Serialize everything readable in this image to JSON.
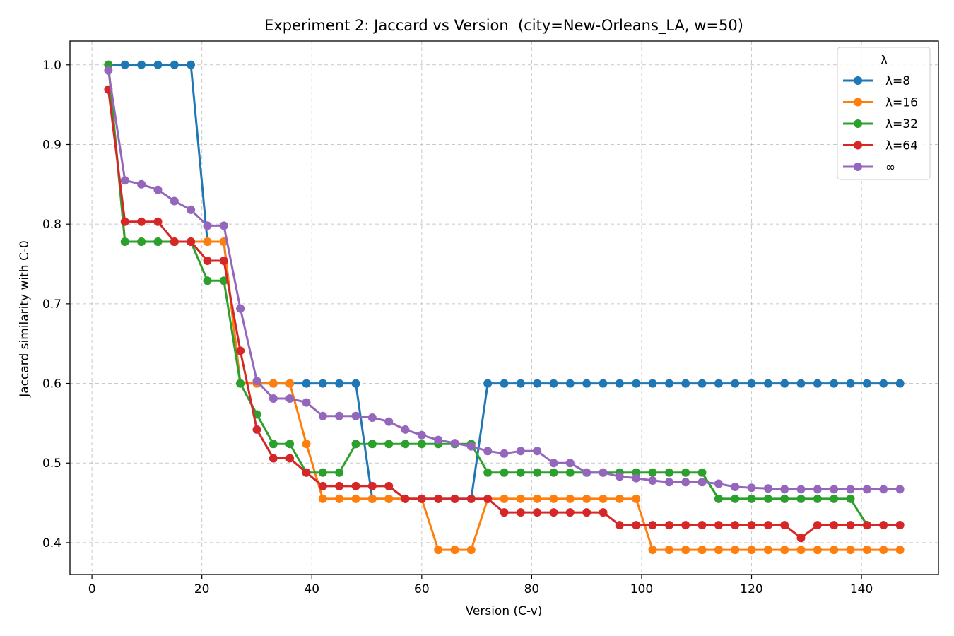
{
  "chart_data": {
    "type": "line",
    "title": "Experiment 2: Jaccard vs Version  (city=New-Orleans_LA, w=50)",
    "xlabel": "Version (C-v)",
    "ylabel": "Jaccard similarity with C-0",
    "xlim": [
      -4,
      154
    ],
    "ylim": [
      0.36,
      1.03
    ],
    "xticks": [
      0,
      20,
      40,
      60,
      80,
      100,
      120,
      140
    ],
    "yticks": [
      0.4,
      0.5,
      0.6,
      0.7,
      0.8,
      0.9,
      1.0
    ],
    "xtick_labels": [
      "0",
      "20",
      "40",
      "60",
      "80",
      "100",
      "120",
      "140"
    ],
    "ytick_labels": [
      "0.4",
      "0.5",
      "0.6",
      "0.7",
      "0.8",
      "0.9",
      "1.0"
    ],
    "grid": true,
    "legend_title": "λ",
    "legend_position": "top-right",
    "x": [
      3,
      6,
      9,
      12,
      15,
      18,
      21,
      24,
      27,
      30,
      33,
      36,
      39,
      42,
      45,
      48,
      51,
      54,
      57,
      60,
      63,
      66,
      69,
      72,
      75,
      78,
      81,
      84,
      87,
      90,
      93,
      96,
      99,
      102,
      105,
      108,
      111,
      114,
      117,
      120,
      123,
      126,
      129,
      132,
      135,
      138,
      141,
      144,
      147
    ],
    "series": [
      {
        "name": "λ=8",
        "color": "#1f77b4",
        "values": [
          1.0,
          1.0,
          1.0,
          1.0,
          1.0,
          1.0,
          0.778,
          0.778,
          0.6,
          0.6,
          0.6,
          0.6,
          0.6,
          0.6,
          0.6,
          0.6,
          0.455,
          0.455,
          0.455,
          0.455,
          0.455,
          0.455,
          0.455,
          0.6,
          0.6,
          0.6,
          0.6,
          0.6,
          0.6,
          0.6,
          0.6,
          0.6,
          0.6,
          0.6,
          0.6,
          0.6,
          0.6,
          0.6,
          0.6,
          0.6,
          0.6,
          0.6,
          0.6,
          0.6,
          0.6,
          0.6,
          0.6,
          0.6,
          0.6
        ]
      },
      {
        "name": "λ=16",
        "color": "#ff7f0e",
        "values": [
          1.0,
          0.778,
          0.778,
          0.778,
          0.778,
          0.778,
          0.778,
          0.778,
          0.6,
          0.6,
          0.6,
          0.6,
          0.524,
          0.455,
          0.455,
          0.455,
          0.455,
          0.455,
          0.455,
          0.455,
          0.391,
          0.391,
          0.391,
          0.455,
          0.455,
          0.455,
          0.455,
          0.455,
          0.455,
          0.455,
          0.455,
          0.455,
          0.455,
          0.391,
          0.391,
          0.391,
          0.391,
          0.391,
          0.391,
          0.391,
          0.391,
          0.391,
          0.391,
          0.391,
          0.391,
          0.391,
          0.391,
          0.391,
          0.391
        ]
      },
      {
        "name": "λ=32",
        "color": "#2ca02c",
        "values": [
          1.0,
          0.778,
          0.778,
          0.778,
          0.778,
          0.778,
          0.729,
          0.729,
          0.6,
          0.561,
          0.524,
          0.524,
          0.488,
          0.488,
          0.488,
          0.524,
          0.524,
          0.524,
          0.524,
          0.524,
          0.524,
          0.524,
          0.524,
          0.488,
          0.488,
          0.488,
          0.488,
          0.488,
          0.488,
          0.488,
          0.488,
          0.488,
          0.488,
          0.488,
          0.488,
          0.488,
          0.488,
          0.455,
          0.455,
          0.455,
          0.455,
          0.455,
          0.455,
          0.455,
          0.455,
          0.455,
          0.422,
          0.422,
          0.422
        ]
      },
      {
        "name": "λ=64",
        "color": "#d62728",
        "values": [
          0.969,
          0.803,
          0.803,
          0.803,
          0.778,
          0.778,
          0.754,
          0.754,
          0.641,
          0.542,
          0.506,
          0.506,
          0.488,
          0.471,
          0.471,
          0.471,
          0.471,
          0.471,
          0.455,
          0.455,
          0.455,
          0.455,
          0.455,
          0.455,
          0.438,
          0.438,
          0.438,
          0.438,
          0.438,
          0.438,
          0.438,
          0.422,
          0.422,
          0.422,
          0.422,
          0.422,
          0.422,
          0.422,
          0.422,
          0.422,
          0.422,
          0.422,
          0.406,
          0.422,
          0.422,
          0.422,
          0.422,
          0.422,
          0.422
        ]
      },
      {
        "name": "∞",
        "color": "#9467bd",
        "values": [
          0.993,
          0.855,
          0.85,
          0.843,
          0.829,
          0.818,
          0.798,
          0.798,
          0.694,
          0.603,
          0.581,
          0.581,
          0.576,
          0.559,
          0.559,
          0.559,
          0.557,
          0.552,
          0.542,
          0.535,
          0.529,
          0.525,
          0.521,
          0.515,
          0.512,
          0.515,
          0.515,
          0.5,
          0.5,
          0.488,
          0.488,
          0.483,
          0.481,
          0.478,
          0.476,
          0.476,
          0.476,
          0.474,
          0.47,
          0.469,
          0.468,
          0.467,
          0.467,
          0.467,
          0.467,
          0.467,
          0.467,
          0.467,
          0.467
        ]
      }
    ]
  }
}
